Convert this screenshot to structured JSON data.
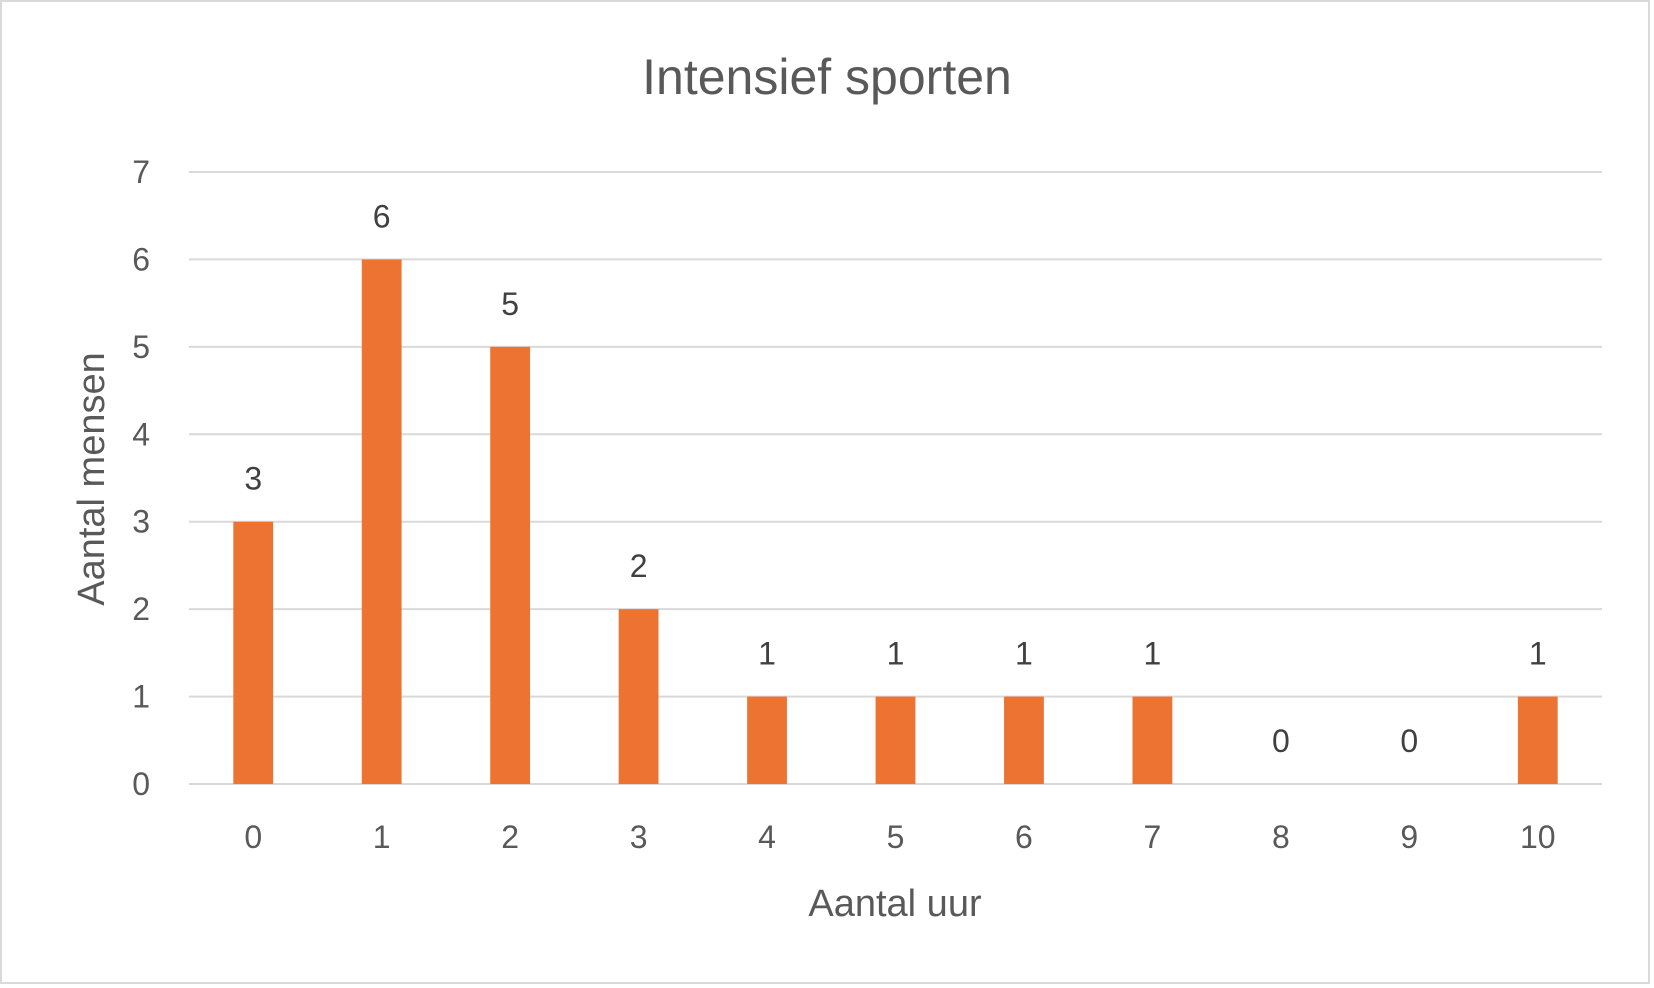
{
  "chart_data": {
    "type": "bar",
    "title": "Intensief sporten",
    "xlabel": "Aantal uur",
    "ylabel": "Aantal mensen",
    "categories": [
      "0",
      "1",
      "2",
      "3",
      "4",
      "5",
      "6",
      "7",
      "8",
      "9",
      "10"
    ],
    "values": [
      3,
      6,
      5,
      2,
      1,
      1,
      1,
      1,
      0,
      0,
      1
    ],
    "ylim": [
      0,
      7
    ],
    "yticks": [
      "0",
      "1",
      "2",
      "3",
      "4",
      "5",
      "6",
      "7"
    ],
    "grid": true,
    "legend": "none",
    "bar_color": "#ED7333",
    "data_labels": true
  }
}
